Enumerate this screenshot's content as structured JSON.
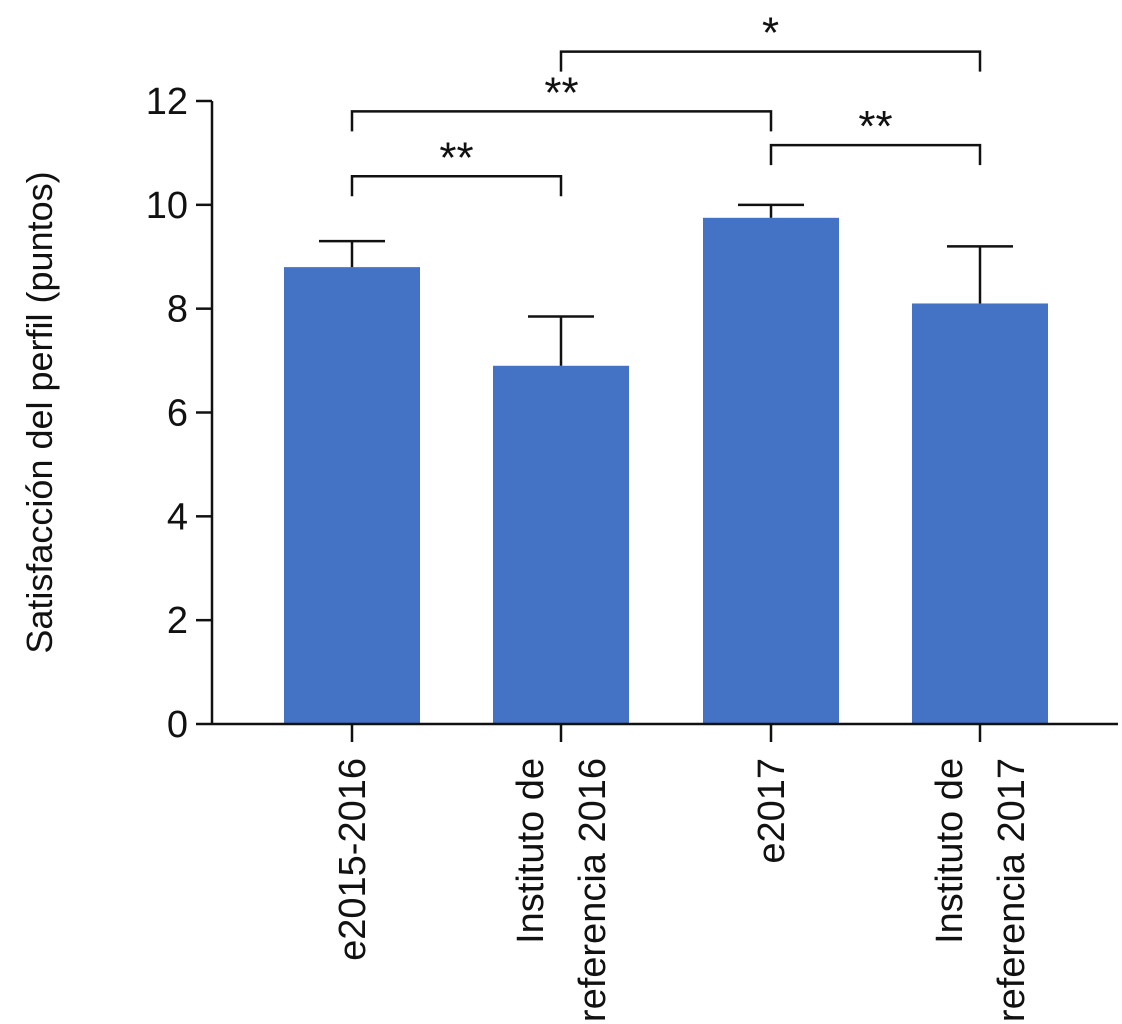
{
  "chart_data": {
    "type": "bar",
    "title": "",
    "xlabel": "",
    "ylabel": "Satisfacción del perfil (puntos)",
    "ylim": [
      0,
      12
    ],
    "yticks": [
      0,
      2,
      4,
      6,
      8,
      10,
      12
    ],
    "grid": false,
    "categories": [
      {
        "lines": [
          "e2015-2016"
        ]
      },
      {
        "lines": [
          "Instituto de",
          "referencia 2016"
        ]
      },
      {
        "lines": [
          "e2017"
        ]
      },
      {
        "lines": [
          "Instituto de",
          "referencia 2017"
        ]
      }
    ],
    "values": [
      8.8,
      6.9,
      9.75,
      8.1
    ],
    "errors": [
      0.5,
      0.95,
      0.25,
      1.1
    ],
    "bar_color": "#4472C4",
    "significance": [
      {
        "from": 0,
        "to": 1,
        "label": "**",
        "y": 10.55
      },
      {
        "from": 0,
        "to": 2,
        "label": "**",
        "y": 11.8
      },
      {
        "from": 2,
        "to": 3,
        "label": "**",
        "y": 11.15
      },
      {
        "from": 1,
        "to": 3,
        "label": "*",
        "y": 12.95
      }
    ]
  }
}
